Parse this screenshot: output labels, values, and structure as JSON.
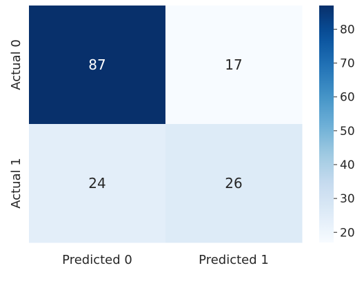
{
  "chart_data": {
    "type": "heatmap",
    "title": "",
    "xlabel": "",
    "ylabel": "",
    "x_categories": [
      "Predicted 0",
      "Predicted 1"
    ],
    "y_categories": [
      "Actual 0",
      "Actual 1"
    ],
    "values": [
      [
        87,
        17
      ],
      [
        24,
        26
      ]
    ],
    "colormap": "Blues",
    "colorbar": {
      "range": [
        17,
        87
      ],
      "ticks": [
        20,
        30,
        40,
        50,
        60,
        70,
        80
      ],
      "tick_labels": [
        "20",
        "30",
        "40",
        "50",
        "60",
        "70",
        "80"
      ]
    },
    "annotated": true
  }
}
